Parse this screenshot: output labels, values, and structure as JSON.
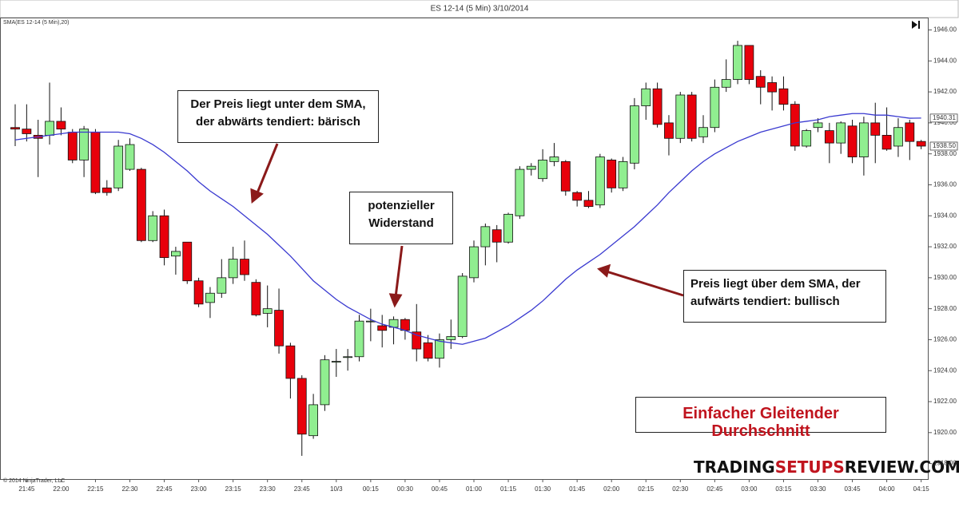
{
  "chart_data": {
    "type": "candlestick",
    "title": "ES 12-14 (5 Min)  3/10/2014",
    "categories": [
      null,
      "21:45",
      null,
      null,
      "22:00",
      null,
      null,
      "22:15",
      null,
      null,
      "22:30",
      null,
      null,
      "22:45",
      null,
      null,
      "23:00",
      null,
      null,
      "23:15",
      null,
      null,
      "23:30",
      null,
      null,
      "23:45",
      null,
      null,
      "10/3",
      null,
      null,
      "00:15",
      null,
      null,
      "00:30",
      null,
      null,
      "00:45",
      null,
      null,
      "01:00",
      null,
      null,
      "01:15",
      null,
      null,
      "01:30",
      null,
      null,
      "01:45",
      null,
      null,
      "02:00",
      null,
      null,
      "02:15",
      null,
      null,
      "02:30",
      null,
      null,
      "02:45",
      null,
      null,
      "03:00",
      null,
      null,
      "03:15",
      null,
      null,
      "03:30",
      null,
      null,
      "03:45",
      null,
      null,
      "04:00",
      null,
      null,
      "04:15"
    ],
    "open": [
      1939.7,
      1939.6,
      1939.2,
      1939.2,
      1940.1,
      1939.4,
      1937.6,
      1939.4,
      1935.8,
      1935.8,
      1937.0,
      1937.0,
      1932.4,
      1934.0,
      1931.4,
      1932.3,
      1929.8,
      1928.4,
      1929.0,
      1930.0,
      1931.2,
      1929.7,
      1927.7,
      1927.9,
      1925.6,
      1923.5,
      1919.8,
      1921.8,
      1924.6,
      1924.9,
      1924.9,
      1927.2,
      1926.9,
      1926.8,
      1927.3,
      1926.5,
      1925.8,
      1924.8,
      1926.0,
      1926.2,
      1930.0,
      1932.0,
      1933.1,
      1932.3,
      1934.0,
      1937.0,
      1936.4,
      1937.5,
      1937.5,
      1935.5,
      1935.0,
      1934.7,
      1937.6,
      1935.8,
      1937.4,
      1941.1,
      1942.2,
      1940.0,
      1939.0,
      1941.8,
      1939.1,
      1939.7,
      1942.3,
      1942.8,
      1945.0,
      1943.0,
      1942.6,
      1942.2,
      1941.2,
      1938.5,
      1939.7,
      1939.5,
      1938.7,
      1939.8,
      1937.8,
      1940.0,
      1939.2,
      1938.5,
      1940.0,
      1938.8
    ],
    "high": [
      1941.2,
      1941.2,
      1940.2,
      1942.6,
      1941.0,
      1939.6,
      1939.8,
      1939.6,
      1936.3,
      1938.9,
      1939.0,
      1937.1,
      1934.3,
      1934.4,
      1932.0,
      1932.3,
      1930.0,
      1929.4,
      1931.2,
      1932.0,
      1932.4,
      1929.9,
      1929.5,
      1929.3,
      1925.8,
      1923.7,
      1922.5,
      1925.0,
      1925.4,
      1925.4,
      1927.6,
      1928.0,
      1927.6,
      1927.5,
      1927.4,
      1928.3,
      1926.3,
      1926.4,
      1927.3,
      1930.3,
      1932.4,
      1933.5,
      1933.4,
      1934.2,
      1937.2,
      1937.4,
      1938.3,
      1938.7,
      1937.6,
      1935.6,
      1935.6,
      1938.0,
      1937.7,
      1937.8,
      1941.6,
      1942.6,
      1942.6,
      1940.5,
      1942.0,
      1942.0,
      1940.5,
      1942.8,
      1944.1,
      1945.3,
      1945.0,
      1943.4,
      1943.0,
      1943.0,
      1941.4,
      1939.6,
      1940.3,
      1940.0,
      1940.1,
      1940.2,
      1940.4,
      1941.3,
      1941.0,
      1940.3,
      1940.2,
      1938.9
    ],
    "low": [
      1938.5,
      1938.8,
      1936.5,
      1938.6,
      1939.2,
      1937.4,
      1936.5,
      1935.4,
      1935.3,
      1935.6,
      1936.9,
      1932.3,
      1932.3,
      1930.8,
      1930.2,
      1929.6,
      1928.1,
      1927.4,
      1928.7,
      1929.6,
      1929.8,
      1927.5,
      1926.8,
      1925.1,
      1922.2,
      1918.5,
      1919.6,
      1921.4,
      1923.6,
      1924.0,
      1924.6,
      1925.9,
      1925.5,
      1925.7,
      1926.0,
      1924.6,
      1924.6,
      1924.2,
      1925.4,
      1926.1,
      1929.7,
      1930.8,
      1931.0,
      1932.2,
      1933.8,
      1936.6,
      1936.2,
      1937.2,
      1935.3,
      1934.6,
      1934.5,
      1934.5,
      1935.5,
      1935.6,
      1937.0,
      1940.2,
      1939.7,
      1937.9,
      1938.7,
      1938.8,
      1938.7,
      1939.4,
      1942.0,
      1942.5,
      1942.5,
      1941.2,
      1940.8,
      1940.8,
      1938.2,
      1938.4,
      1939.4,
      1937.4,
      1938.0,
      1937.4,
      1936.6,
      1937.4,
      1938.2,
      1937.8,
      1937.6,
      1938.3
    ],
    "close": [
      1939.6,
      1939.3,
      1939.0,
      1940.1,
      1939.6,
      1937.6,
      1939.6,
      1935.5,
      1935.5,
      1938.5,
      1938.6,
      1932.4,
      1934.0,
      1931.3,
      1931.7,
      1929.8,
      1928.3,
      1929.0,
      1930.0,
      1931.2,
      1930.2,
      1927.6,
      1928.0,
      1925.6,
      1923.5,
      1919.9,
      1921.8,
      1924.7,
      1924.6,
      1924.9,
      1927.2,
      1927.2,
      1926.6,
      1927.3,
      1926.6,
      1925.4,
      1924.8,
      1926.0,
      1926.2,
      1930.1,
      1932.0,
      1933.3,
      1932.3,
      1934.1,
      1937.0,
      1937.2,
      1937.6,
      1937.8,
      1935.6,
      1935.0,
      1934.6,
      1937.8,
      1935.8,
      1937.5,
      1941.1,
      1942.2,
      1939.9,
      1939.0,
      1941.8,
      1939.0,
      1939.7,
      1942.3,
      1942.8,
      1945.0,
      1942.8,
      1942.3,
      1942.0,
      1941.2,
      1938.5,
      1939.5,
      1940.0,
      1938.7,
      1940.0,
      1937.8,
      1940.0,
      1939.2,
      1938.3,
      1939.7,
      1938.8,
      1938.5
    ],
    "up_color": "#90ee90",
    "down_color": "#e8000b",
    "series": [
      {
        "name": "SMA(ES 12-14 (5 Min),20)",
        "color": "#3a3ad0",
        "values": [
          1938.9,
          1939.0,
          1939.1,
          1939.2,
          1939.3,
          1939.4,
          1939.4,
          1939.4,
          1939.4,
          1939.4,
          1939.3,
          1939.0,
          1938.6,
          1938.1,
          1937.5,
          1936.9,
          1936.2,
          1935.6,
          1935.1,
          1934.6,
          1934.0,
          1933.4,
          1932.8,
          1932.1,
          1931.4,
          1930.6,
          1929.8,
          1929.2,
          1928.6,
          1928.1,
          1927.7,
          1927.3,
          1927.0,
          1926.8,
          1926.6,
          1926.3,
          1926.1,
          1925.9,
          1925.8,
          1925.7,
          1925.9,
          1926.1,
          1926.5,
          1926.9,
          1927.4,
          1927.9,
          1928.5,
          1929.2,
          1929.9,
          1930.5,
          1931.0,
          1931.5,
          1932.1,
          1932.7,
          1933.3,
          1934.0,
          1934.7,
          1935.5,
          1936.2,
          1936.9,
          1937.5,
          1938.0,
          1938.4,
          1938.8,
          1939.1,
          1939.4,
          1939.6,
          1939.8,
          1940.0,
          1940.1,
          1940.2,
          1940.4,
          1940.5,
          1940.6,
          1940.6,
          1940.5,
          1940.5,
          1940.4,
          1940.3,
          1940.31
        ]
      }
    ],
    "ylim": [
      1917,
      1946.8
    ],
    "yticks": [
      {
        "value": 1918,
        "label": "1918.00"
      },
      {
        "value": 1920,
        "label": "1920.00"
      },
      {
        "value": 1922,
        "label": "1922.00"
      },
      {
        "value": 1924,
        "label": "1924.00"
      },
      {
        "value": 1926,
        "label": "1926.00"
      },
      {
        "value": 1928,
        "label": "1928.00"
      },
      {
        "value": 1930,
        "label": "1930.00"
      },
      {
        "value": 1932,
        "label": "1932.00"
      },
      {
        "value": 1934,
        "label": "1934.00"
      },
      {
        "value": 1936,
        "label": "1936.00"
      },
      {
        "value": 1938,
        "label": "1938.00"
      },
      {
        "value": 1940,
        "label": "1940.00"
      },
      {
        "value": 1942,
        "label": "1942.00"
      },
      {
        "value": 1944,
        "label": "1944.00"
      },
      {
        "value": 1946,
        "label": "1946.00"
      }
    ],
    "price_labels": [
      {
        "value": 1940.31,
        "label": "1940.31"
      },
      {
        "value": 1938.5,
        "label": "1938.50"
      }
    ],
    "annotations": [
      [
        "Der Preis liegt unter dem SMA,",
        "der abwärts tendiert: bärisch"
      ],
      [
        "potenzieller",
        "Widerstand"
      ],
      [
        "Preis liegt über dem SMA, der",
        "aufwärts tendiert: bullisch"
      ]
    ],
    "headline": "Einfacher Gleitender Durchschnitt",
    "copyright": "© 2014 NinjaTrader, LLC",
    "watermark": [
      "TRADING",
      "SETUPS",
      "REVIEW.COM"
    ]
  }
}
